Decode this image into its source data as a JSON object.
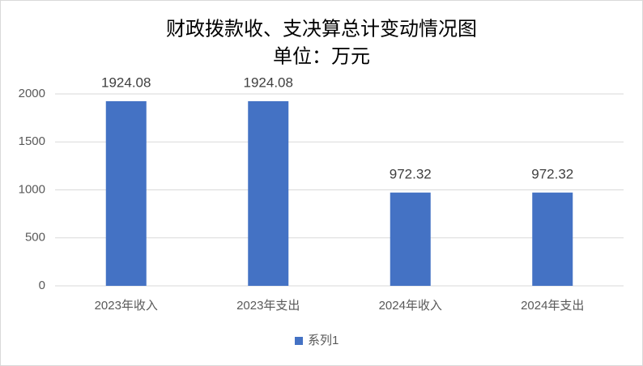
{
  "chart_data": {
    "type": "bar",
    "title": "财政拨款收、支决算总计变动情况图",
    "subtitle": "单位：万元",
    "categories": [
      "2023年收入",
      "2023年支出",
      "2024年收入",
      "2024年支出"
    ],
    "series": [
      {
        "name": "系列1",
        "color": "#4472c4",
        "values": [
          1924.08,
          1924.08,
          972.32,
          972.32
        ]
      }
    ],
    "ylim": [
      0,
      2000
    ],
    "yticks": [
      0,
      500,
      1000,
      1500,
      2000
    ],
    "grid": true,
    "legend": "bottom"
  }
}
